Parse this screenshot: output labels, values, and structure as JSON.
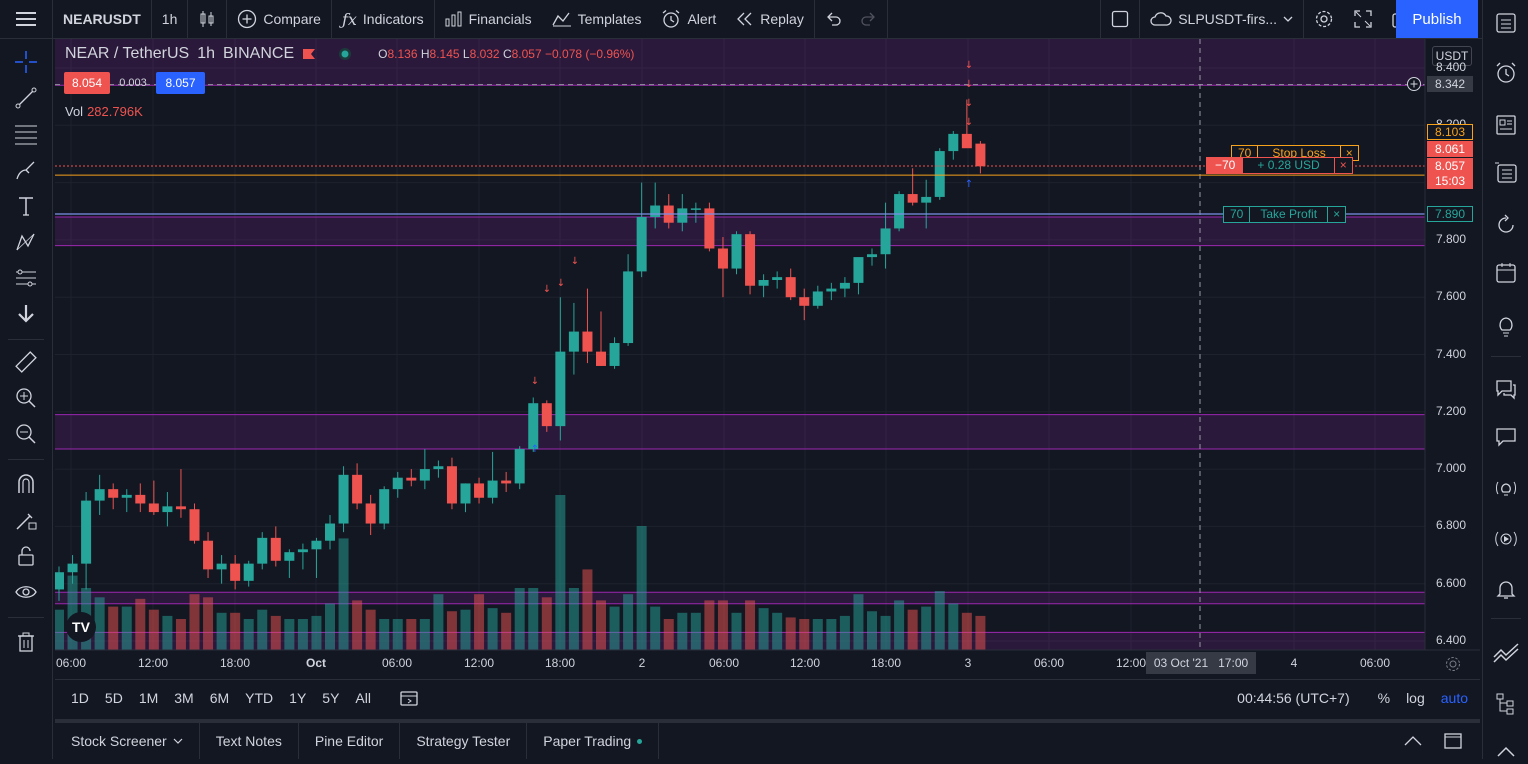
{
  "topbar": {
    "symbol": "NEARUSDT",
    "interval": "1h",
    "compare": "Compare",
    "indicators": "Indicators",
    "financials": "Financials",
    "templates": "Templates",
    "alert": "Alert",
    "replay": "Replay",
    "layout_name": "SLPUSDT-firs...",
    "publish": "Publish"
  },
  "legend": {
    "pair": "NEAR / TetherUS",
    "interval": "1h",
    "exchange": "BINANCE",
    "o_key": "O",
    "o": "8.136",
    "h_key": "H",
    "h": "8.145",
    "l_key": "L",
    "l": "8.032",
    "c_key": "C",
    "c": "8.057",
    "change": "−0.078 (−0.96%)",
    "bid": "8.054",
    "spread": "0.003",
    "ask": "8.057",
    "vol_label": "Vol",
    "vol_value": "282.796K"
  },
  "price_axis": {
    "currency": "USDT",
    "ticks": [
      "8.400",
      "8.200",
      "7.800",
      "7.600",
      "7.400",
      "7.200",
      "7.000",
      "6.800",
      "6.600",
      "6.400"
    ],
    "crosshair_price": "8.342",
    "stop_price": "8.103",
    "entry_price": "8.061",
    "last_price": "8.057",
    "countdown": "15:03",
    "tp_price": "7.890"
  },
  "time_axis": {
    "ticks": [
      "06:00",
      "12:00",
      "18:00",
      "Oct",
      "06:00",
      "12:00",
      "18:00",
      "2",
      "06:00",
      "12:00",
      "18:00",
      "3",
      "06:00",
      "12:00",
      "4",
      "06:00"
    ],
    "crosshair_time": "03 Oct '21   17:00"
  },
  "orders": {
    "stop_qty": "70",
    "stop_label": "Stop Loss",
    "pos_qty": "−70",
    "pos_pnl": "+ 0.28 USD",
    "tp_qty": "70",
    "tp_label": "Take Profit"
  },
  "bottombar": {
    "ranges": [
      "1D",
      "5D",
      "1M",
      "3M",
      "6M",
      "YTD",
      "1Y",
      "5Y",
      "All"
    ],
    "clock": "00:44:56 (UTC+7)",
    "pct": "%",
    "log": "log",
    "auto": "auto"
  },
  "tabs": [
    "Stock Screener",
    "Text Notes",
    "Pine Editor",
    "Strategy Tester",
    "Paper Trading"
  ],
  "colors": {
    "up": "#26a69a",
    "down": "#ef5350",
    "zone": "#9c27b0",
    "accent": "#2962ff",
    "stop": "#f7a21b"
  },
  "chart_data": {
    "type": "candlestick",
    "symbol": "NEARUSDT",
    "interval": "1h",
    "ylim": [
      6.36,
      8.45
    ],
    "candles": [
      {
        "o": 6.58,
        "h": 6.66,
        "l": 6.54,
        "c": 6.64
      },
      {
        "o": 6.64,
        "h": 6.7,
        "l": 6.6,
        "c": 6.67
      },
      {
        "o": 6.67,
        "h": 6.92,
        "l": 6.58,
        "c": 6.89
      },
      {
        "o": 6.89,
        "h": 6.98,
        "l": 6.84,
        "c": 6.93
      },
      {
        "o": 6.93,
        "h": 6.95,
        "l": 6.86,
        "c": 6.9
      },
      {
        "o": 6.9,
        "h": 6.93,
        "l": 6.85,
        "c": 6.91
      },
      {
        "o": 6.91,
        "h": 6.95,
        "l": 6.85,
        "c": 6.88
      },
      {
        "o": 6.88,
        "h": 6.96,
        "l": 6.84,
        "c": 6.85
      },
      {
        "o": 6.85,
        "h": 6.92,
        "l": 6.8,
        "c": 6.87
      },
      {
        "o": 6.87,
        "h": 7.0,
        "l": 6.83,
        "c": 6.86
      },
      {
        "o": 6.86,
        "h": 6.88,
        "l": 6.74,
        "c": 6.75
      },
      {
        "o": 6.75,
        "h": 6.78,
        "l": 6.62,
        "c": 6.65
      },
      {
        "o": 6.65,
        "h": 6.7,
        "l": 6.6,
        "c": 6.67
      },
      {
        "o": 6.67,
        "h": 6.7,
        "l": 6.58,
        "c": 6.61
      },
      {
        "o": 6.61,
        "h": 6.68,
        "l": 6.59,
        "c": 6.67
      },
      {
        "o": 6.67,
        "h": 6.78,
        "l": 6.65,
        "c": 6.76
      },
      {
        "o": 6.76,
        "h": 6.8,
        "l": 6.66,
        "c": 6.68
      },
      {
        "o": 6.68,
        "h": 6.72,
        "l": 6.62,
        "c": 6.71
      },
      {
        "o": 6.71,
        "h": 6.74,
        "l": 6.65,
        "c": 6.72
      },
      {
        "o": 6.72,
        "h": 6.76,
        "l": 6.62,
        "c": 6.75
      },
      {
        "o": 6.75,
        "h": 6.84,
        "l": 6.72,
        "c": 6.81
      },
      {
        "o": 6.81,
        "h": 7.01,
        "l": 6.78,
        "c": 6.98
      },
      {
        "o": 6.98,
        "h": 7.02,
        "l": 6.86,
        "c": 6.88
      },
      {
        "o": 6.88,
        "h": 6.91,
        "l": 6.77,
        "c": 6.81
      },
      {
        "o": 6.81,
        "h": 6.94,
        "l": 6.79,
        "c": 6.93
      },
      {
        "o": 6.93,
        "h": 6.99,
        "l": 6.9,
        "c": 6.97
      },
      {
        "o": 6.97,
        "h": 7.0,
        "l": 6.94,
        "c": 6.96
      },
      {
        "o": 6.96,
        "h": 7.07,
        "l": 6.93,
        "c": 7.0
      },
      {
        "o": 7.0,
        "h": 7.03,
        "l": 6.97,
        "c": 7.01
      },
      {
        "o": 7.01,
        "h": 7.04,
        "l": 6.86,
        "c": 6.88
      },
      {
        "o": 6.88,
        "h": 6.95,
        "l": 6.85,
        "c": 6.95
      },
      {
        "o": 6.95,
        "h": 6.97,
        "l": 6.88,
        "c": 6.9
      },
      {
        "o": 6.9,
        "h": 7.06,
        "l": 6.88,
        "c": 6.96
      },
      {
        "o": 6.96,
        "h": 6.99,
        "l": 6.92,
        "c": 6.95
      },
      {
        "o": 6.95,
        "h": 7.08,
        "l": 6.93,
        "c": 7.07
      },
      {
        "o": 7.07,
        "h": 7.25,
        "l": 7.06,
        "c": 7.23
      },
      {
        "o": 7.23,
        "h": 7.24,
        "l": 7.13,
        "c": 7.15
      },
      {
        "o": 7.15,
        "h": 7.6,
        "l": 7.1,
        "c": 7.41
      },
      {
        "o": 7.41,
        "h": 7.58,
        "l": 7.33,
        "c": 7.48
      },
      {
        "o": 7.48,
        "h": 7.63,
        "l": 7.37,
        "c": 7.41
      },
      {
        "o": 7.41,
        "h": 7.55,
        "l": 7.36,
        "c": 7.36
      },
      {
        "o": 7.36,
        "h": 7.46,
        "l": 7.35,
        "c": 7.44
      },
      {
        "o": 7.44,
        "h": 7.75,
        "l": 7.43,
        "c": 7.69
      },
      {
        "o": 7.69,
        "h": 8.0,
        "l": 7.67,
        "c": 7.88
      },
      {
        "o": 7.88,
        "h": 8.0,
        "l": 7.84,
        "c": 7.92
      },
      {
        "o": 7.92,
        "h": 7.96,
        "l": 7.84,
        "c": 7.86
      },
      {
        "o": 7.86,
        "h": 7.96,
        "l": 7.83,
        "c": 7.91
      },
      {
        "o": 7.91,
        "h": 7.93,
        "l": 7.86,
        "c": 7.91
      },
      {
        "o": 7.91,
        "h": 7.93,
        "l": 7.76,
        "c": 7.77
      },
      {
        "o": 7.77,
        "h": 7.81,
        "l": 7.6,
        "c": 7.7
      },
      {
        "o": 7.7,
        "h": 7.83,
        "l": 7.68,
        "c": 7.82
      },
      {
        "o": 7.82,
        "h": 7.83,
        "l": 7.61,
        "c": 7.64
      },
      {
        "o": 7.64,
        "h": 7.68,
        "l": 7.6,
        "c": 7.66
      },
      {
        "o": 7.66,
        "h": 7.69,
        "l": 7.63,
        "c": 7.67
      },
      {
        "o": 7.67,
        "h": 7.7,
        "l": 7.59,
        "c": 7.6
      },
      {
        "o": 7.6,
        "h": 7.63,
        "l": 7.52,
        "c": 7.57
      },
      {
        "o": 7.57,
        "h": 7.64,
        "l": 7.56,
        "c": 7.62
      },
      {
        "o": 7.62,
        "h": 7.65,
        "l": 7.59,
        "c": 7.63
      },
      {
        "o": 7.63,
        "h": 7.67,
        "l": 7.6,
        "c": 7.65
      },
      {
        "o": 7.65,
        "h": 7.73,
        "l": 7.61,
        "c": 7.74
      },
      {
        "o": 7.74,
        "h": 7.77,
        "l": 7.71,
        "c": 7.75
      },
      {
        "o": 7.75,
        "h": 7.93,
        "l": 7.7,
        "c": 7.84
      },
      {
        "o": 7.84,
        "h": 7.97,
        "l": 7.83,
        "c": 7.96
      },
      {
        "o": 7.96,
        "h": 8.05,
        "l": 7.92,
        "c": 7.93
      },
      {
        "o": 7.93,
        "h": 8.01,
        "l": 7.84,
        "c": 7.95
      },
      {
        "o": 7.95,
        "h": 8.12,
        "l": 7.94,
        "c": 8.11
      },
      {
        "o": 8.11,
        "h": 8.18,
        "l": 8.08,
        "c": 8.17
      },
      {
        "o": 8.17,
        "h": 8.29,
        "l": 8.13,
        "c": 8.12
      },
      {
        "o": 8.136,
        "h": 8.145,
        "l": 8.032,
        "c": 8.057
      }
    ],
    "volume": [
      0.26,
      0.48,
      0.4,
      0.34,
      0.28,
      0.28,
      0.33,
      0.26,
      0.22,
      0.2,
      0.36,
      0.34,
      0.24,
      0.24,
      0.2,
      0.26,
      0.22,
      0.2,
      0.2,
      0.22,
      0.3,
      0.72,
      0.32,
      0.26,
      0.2,
      0.2,
      0.2,
      0.2,
      0.36,
      0.25,
      0.26,
      0.36,
      0.27,
      0.24,
      0.4,
      0.4,
      0.34,
      1.0,
      0.4,
      0.52,
      0.32,
      0.28,
      0.36,
      0.8,
      0.28,
      0.2,
      0.24,
      0.24,
      0.32,
      0.32,
      0.24,
      0.32,
      0.27,
      0.24,
      0.21,
      0.2,
      0.2,
      0.2,
      0.22,
      0.36,
      0.25,
      0.22,
      0.32,
      0.26,
      0.28,
      0.38,
      0.3,
      0.24,
      0.22
    ],
    "zones": [
      [
        8.34,
        8.62
      ],
      [
        7.78,
        7.88
      ],
      [
        7.07,
        7.19
      ],
      [
        6.53,
        6.57
      ],
      [
        6.28,
        6.43
      ]
    ],
    "stop_loss": 8.103,
    "entry": 8.061,
    "take_profit": 7.89,
    "crosshair_price": 8.342
  }
}
